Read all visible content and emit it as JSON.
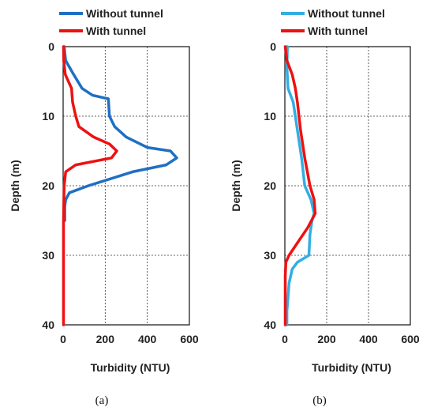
{
  "chart_data": [
    {
      "type": "line",
      "panel_label": "(a)",
      "xlabel": "Turbidity (NTU)",
      "ylabel": "Depth (m)",
      "xlim": [
        0,
        600
      ],
      "ylim": [
        0,
        40
      ],
      "y_inverted": true,
      "xticks": [
        "0",
        "200",
        "400",
        "600"
      ],
      "yticks": [
        "0",
        "10",
        "20",
        "30",
        "40"
      ],
      "grid": "dashed",
      "legend_position": "top-left, above plot",
      "series": [
        {
          "name": "Without tunnel",
          "color": "#1f6fc4",
          "points": [
            {
              "x": 5,
              "y": 0
            },
            {
              "x": 12,
              "y": 2
            },
            {
              "x": 50,
              "y": 4
            },
            {
              "x": 90,
              "y": 6
            },
            {
              "x": 140,
              "y": 7
            },
            {
              "x": 215,
              "y": 7.5
            },
            {
              "x": 220,
              "y": 10
            },
            {
              "x": 245,
              "y": 11.5
            },
            {
              "x": 300,
              "y": 13
            },
            {
              "x": 400,
              "y": 14.5
            },
            {
              "x": 510,
              "y": 15
            },
            {
              "x": 540,
              "y": 16
            },
            {
              "x": 490,
              "y": 17
            },
            {
              "x": 330,
              "y": 18
            },
            {
              "x": 120,
              "y": 20
            },
            {
              "x": 30,
              "y": 21
            },
            {
              "x": 12,
              "y": 22
            },
            {
              "x": 8,
              "y": 23
            },
            {
              "x": 8,
              "y": 25
            }
          ]
        },
        {
          "name": "With tunnel",
          "color": "#ee1111",
          "points": [
            {
              "x": 2,
              "y": 0
            },
            {
              "x": 3,
              "y": 2
            },
            {
              "x": 10,
              "y": 4
            },
            {
              "x": 40,
              "y": 6
            },
            {
              "x": 45,
              "y": 8
            },
            {
              "x": 60,
              "y": 10
            },
            {
              "x": 75,
              "y": 11.5
            },
            {
              "x": 145,
              "y": 13
            },
            {
              "x": 220,
              "y": 14
            },
            {
              "x": 255,
              "y": 15
            },
            {
              "x": 230,
              "y": 16
            },
            {
              "x": 60,
              "y": 17
            },
            {
              "x": 12,
              "y": 18
            },
            {
              "x": 5,
              "y": 20
            },
            {
              "x": 2,
              "y": 25
            },
            {
              "x": 2,
              "y": 30
            },
            {
              "x": 2,
              "y": 40
            }
          ]
        }
      ]
    },
    {
      "type": "line",
      "panel_label": "(b)",
      "xlabel": "Turbidity (NTU)",
      "ylabel": "Depth (m)",
      "xlim": [
        0,
        600
      ],
      "ylim": [
        0,
        40
      ],
      "y_inverted": true,
      "xticks": [
        "0",
        "200",
        "400",
        "600"
      ],
      "yticks": [
        "0",
        "10",
        "20",
        "30",
        "40"
      ],
      "grid": "dashed",
      "legend_position": "top-left, above plot",
      "series": [
        {
          "name": "Without tunnel",
          "color": "#33aee3",
          "points": [
            {
              "x": 12,
              "y": 0
            },
            {
              "x": 10,
              "y": 3
            },
            {
              "x": 15,
              "y": 6
            },
            {
              "x": 40,
              "y": 8
            },
            {
              "x": 60,
              "y": 12
            },
            {
              "x": 80,
              "y": 16
            },
            {
              "x": 95,
              "y": 20
            },
            {
              "x": 125,
              "y": 22
            },
            {
              "x": 140,
              "y": 24
            },
            {
              "x": 130,
              "y": 25
            },
            {
              "x": 120,
              "y": 27
            },
            {
              "x": 115,
              "y": 30
            },
            {
              "x": 60,
              "y": 31
            },
            {
              "x": 35,
              "y": 32
            },
            {
              "x": 20,
              "y": 34
            },
            {
              "x": 15,
              "y": 36
            },
            {
              "x": 10,
              "y": 38
            },
            {
              "x": 10,
              "y": 40
            }
          ]
        },
        {
          "name": "With tunnel",
          "color": "#ee1111",
          "points": [
            {
              "x": 2,
              "y": 0
            },
            {
              "x": 10,
              "y": 2
            },
            {
              "x": 35,
              "y": 4
            },
            {
              "x": 50,
              "y": 6
            },
            {
              "x": 60,
              "y": 8
            },
            {
              "x": 75,
              "y": 12
            },
            {
              "x": 95,
              "y": 16
            },
            {
              "x": 120,
              "y": 20
            },
            {
              "x": 140,
              "y": 22
            },
            {
              "x": 145,
              "y": 24
            },
            {
              "x": 110,
              "y": 26
            },
            {
              "x": 65,
              "y": 28
            },
            {
              "x": 20,
              "y": 30
            },
            {
              "x": 5,
              "y": 31
            },
            {
              "x": 2,
              "y": 33
            },
            {
              "x": 2,
              "y": 40
            }
          ]
        }
      ]
    }
  ]
}
